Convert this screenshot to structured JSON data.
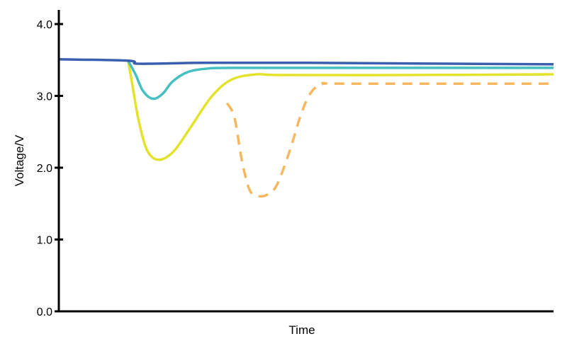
{
  "chart_data": {
    "type": "line",
    "title": "",
    "xlabel": "Time",
    "ylabel": "Voltage/V",
    "ylim": [
      0,
      4
    ],
    "xlim": [
      0,
      100
    ],
    "grid": false,
    "x_ticks_shown": false,
    "y_ticks": [
      {
        "value": 0,
        "label": "0.0"
      },
      {
        "value": 1,
        "label": "1.0"
      },
      {
        "value": 2,
        "label": "2.0"
      },
      {
        "value": 3,
        "label": "3.0"
      },
      {
        "value": 4,
        "label": "4.0"
      }
    ],
    "series": [
      {
        "color": "#3a5fae",
        "dash": "solid",
        "points": [
          [
            0,
            3.51
          ],
          [
            14,
            3.49
          ],
          [
            15.5,
            3.45
          ],
          [
            20,
            3.45
          ],
          [
            30,
            3.46
          ],
          [
            50,
            3.46
          ],
          [
            75,
            3.45
          ],
          [
            100,
            3.44
          ]
        ]
      },
      {
        "color": "#45bfc0",
        "dash": "solid",
        "points": [
          [
            14,
            3.49
          ],
          [
            15.5,
            3.3
          ],
          [
            17,
            3.07
          ],
          [
            19,
            2.96
          ],
          [
            21,
            3.03
          ],
          [
            23,
            3.2
          ],
          [
            26,
            3.33
          ],
          [
            30,
            3.38
          ],
          [
            35,
            3.39
          ],
          [
            60,
            3.39
          ],
          [
            100,
            3.39
          ]
        ]
      },
      {
        "color": "#e3e22c",
        "dash": "solid",
        "points": [
          [
            14,
            3.49
          ],
          [
            15,
            3.1
          ],
          [
            16,
            2.7
          ],
          [
            17.5,
            2.3
          ],
          [
            19,
            2.14
          ],
          [
            21,
            2.12
          ],
          [
            23.5,
            2.25
          ],
          [
            27,
            2.6
          ],
          [
            31,
            3.0
          ],
          [
            35,
            3.23
          ],
          [
            40,
            3.3
          ],
          [
            45,
            3.29
          ],
          [
            70,
            3.29
          ],
          [
            100,
            3.3
          ]
        ]
      },
      {
        "color": "#f7b75f",
        "dash": "dashed",
        "points": [
          [
            34,
            2.9
          ],
          [
            35.5,
            2.7
          ],
          [
            37,
            2.1
          ],
          [
            38.5,
            1.7
          ],
          [
            40,
            1.61
          ],
          [
            42,
            1.62
          ],
          [
            44,
            1.75
          ],
          [
            46.5,
            2.2
          ],
          [
            49,
            2.75
          ],
          [
            51,
            3.05
          ],
          [
            53.5,
            3.17
          ],
          [
            58,
            3.17
          ],
          [
            100,
            3.17
          ]
        ]
      }
    ]
  }
}
